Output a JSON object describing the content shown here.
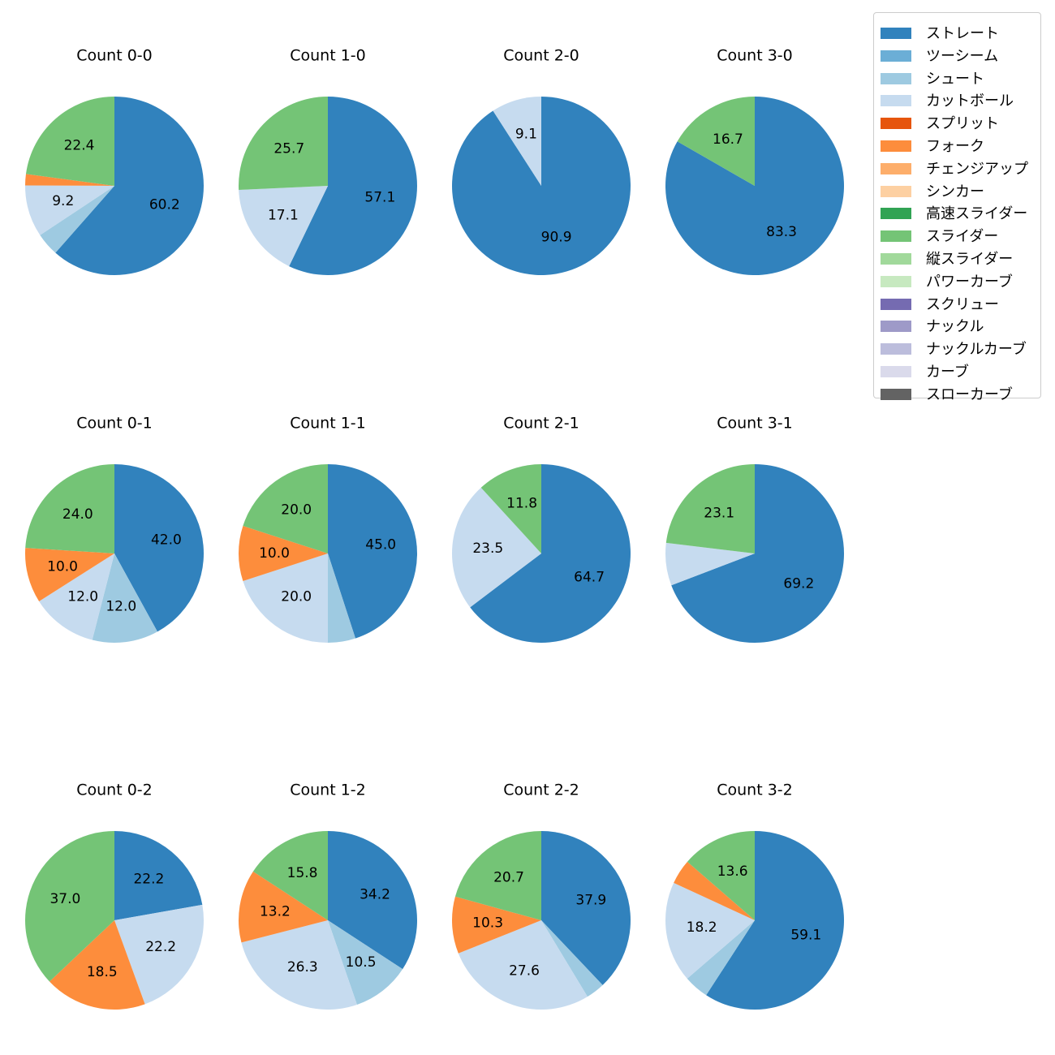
{
  "chart_data": {
    "type": "pie",
    "categories": [
      "ストレート",
      "ツーシーム",
      "シュート",
      "カットボール",
      "スプリット",
      "フォーク",
      "チェンジアップ",
      "シンカー",
      "高速スライダー",
      "スライダー",
      "縦スライダー",
      "パワーカーブ",
      "スクリュー",
      "ナックル",
      "ナックルカーブ",
      "カーブ",
      "スローカーブ"
    ],
    "colors": [
      "#3182bd",
      "#6baed6",
      "#9ecae1",
      "#c6dbef",
      "#e6550d",
      "#fd8d3c",
      "#fdae6b",
      "#fdd0a2",
      "#31a354",
      "#74c476",
      "#a1d99b",
      "#c7e9c0",
      "#756bb1",
      "#9e9ac8",
      "#bcbddc",
      "#dadaeb",
      "#636363"
    ],
    "legend_position": "top-right",
    "start_angle": "top, clockwise",
    "pies": [
      {
        "title": "Count 0-0",
        "values": {
          "ストレート": 60.2,
          "シュート": 4.1,
          "カットボール": 9.2,
          "フォーク": 2.0,
          "スライダー": 22.4
        },
        "labels": {
          "ストレート": "60.2",
          "カットボール": "9.2",
          "スライダー": "22.4"
        }
      },
      {
        "title": "Count 1-0",
        "values": {
          "ストレート": 57.1,
          "カットボール": 17.1,
          "スライダー": 25.7
        },
        "labels": {
          "ストレート": "57.1",
          "カットボール": "17.1",
          "スライダー": "25.7"
        }
      },
      {
        "title": "Count 2-0",
        "values": {
          "ストレート": 90.9,
          "カットボール": 9.1
        },
        "labels": {
          "ストレート": "90.9",
          "カットボール": "9.1"
        }
      },
      {
        "title": "Count 3-0",
        "values": {
          "ストレート": 83.3,
          "スライダー": 16.7
        },
        "labels": {
          "ストレート": "83.3",
          "スライダー": "16.7"
        }
      },
      {
        "title": "Count 0-1",
        "values": {
          "ストレート": 42.0,
          "シュート": 12.0,
          "カットボール": 12.0,
          "フォーク": 10.0,
          "スライダー": 24.0
        },
        "labels": {
          "ストレート": "42.0",
          "シュート": "12.0",
          "カットボール": "12.0",
          "フォーク": "10.0",
          "スライダー": "24.0"
        }
      },
      {
        "title": "Count 1-1",
        "values": {
          "ストレート": 45.0,
          "シュート": 5.0,
          "カットボール": 20.0,
          "フォーク": 10.0,
          "スライダー": 20.0
        },
        "labels": {
          "ストレート": "45.0",
          "カットボール": "20.0",
          "フォーク": "10.0",
          "スライダー": "20.0"
        }
      },
      {
        "title": "Count 2-1",
        "values": {
          "ストレート": 64.7,
          "カットボール": 23.5,
          "スライダー": 11.8
        },
        "labels": {
          "ストレート": "64.7",
          "カットボール": "23.5",
          "スライダー": "11.8"
        }
      },
      {
        "title": "Count 3-1",
        "values": {
          "ストレート": 69.2,
          "カットボール": 7.7,
          "スライダー": 23.1
        },
        "labels": {
          "ストレート": "69.2",
          "スライダー": "23.1"
        }
      },
      {
        "title": "Count 0-2",
        "values": {
          "ストレート": 22.2,
          "カットボール": 22.2,
          "フォーク": 18.5,
          "スライダー": 37.0
        },
        "labels": {
          "ストレート": "22.2",
          "カットボール": "22.2",
          "フォーク": "18.5",
          "スライダー": "37.0"
        }
      },
      {
        "title": "Count 1-2",
        "values": {
          "ストレート": 34.2,
          "シュート": 10.5,
          "カットボール": 26.3,
          "フォーク": 13.2,
          "スライダー": 15.8
        },
        "labels": {
          "ストレート": "34.2",
          "シュート": "10.5",
          "カットボール": "26.3",
          "フォーク": "13.2",
          "スライダー": "15.8"
        }
      },
      {
        "title": "Count 2-2",
        "values": {
          "ストレート": 37.9,
          "シュート": 3.4,
          "カットボール": 27.6,
          "フォーク": 10.3,
          "スライダー": 20.7
        },
        "labels": {
          "ストレート": "37.9",
          "カットボール": "27.6",
          "フォーク": "10.3",
          "スライダー": "20.7"
        }
      },
      {
        "title": "Count 3-2",
        "values": {
          "ストレート": 59.1,
          "シュート": 4.5,
          "カットボール": 18.2,
          "フォーク": 4.5,
          "スライダー": 13.6
        },
        "labels": {
          "ストレート": "59.1",
          "カットボール": "18.2",
          "スライダー": "13.6"
        }
      }
    ]
  }
}
